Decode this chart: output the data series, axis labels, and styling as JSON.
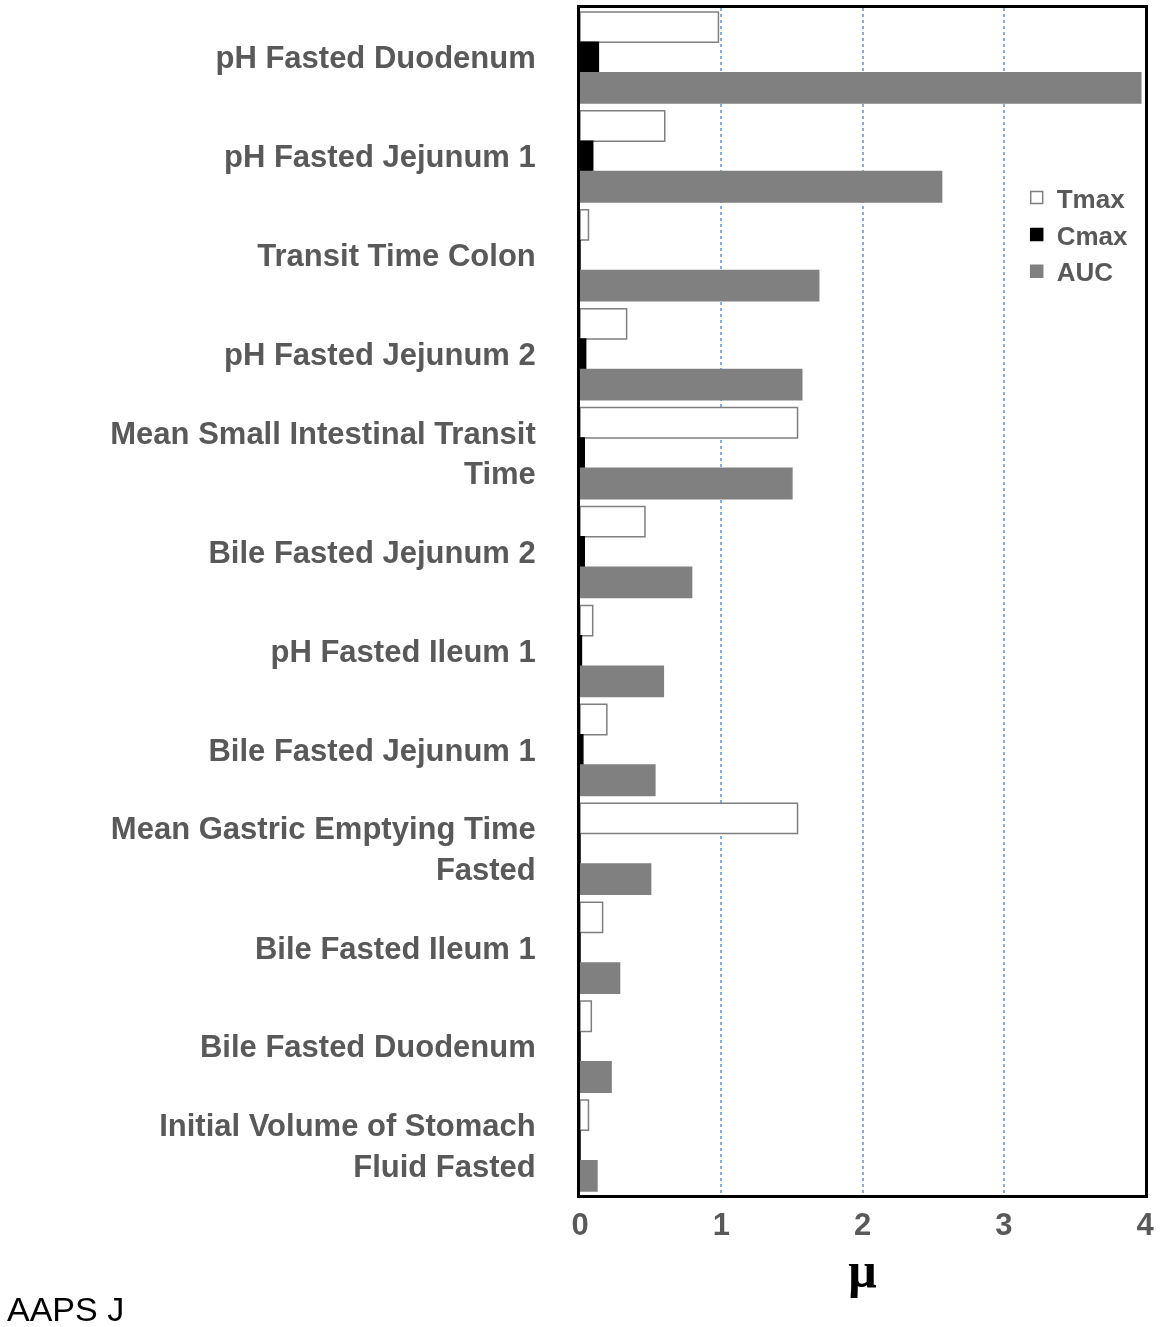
{
  "chart_data": {
    "type": "bar",
    "orientation": "horizontal",
    "xlabel": "μ",
    "categories": [
      "pH Fasted Duodenum",
      "pH Fasted Jejunum 1",
      "Transit Time Colon",
      "pH Fasted Jejunum 2",
      "Mean Small Intestinal Transit Time",
      "Bile Fasted Jejunum 2",
      "pH Fasted Ileum 1",
      "Bile Fasted Jejunum 1",
      "Mean Gastric Emptying Time Fasted",
      "Bile Fasted Ileum 1",
      "Bile Fasted Duodenum",
      "Initial Volume of Stomach Fluid Fasted"
    ],
    "series": [
      {
        "name": "Tmax",
        "color": "#ffffff",
        "values": [
          0.98,
          0.6,
          0.06,
          0.33,
          1.54,
          0.46,
          0.09,
          0.19,
          1.54,
          0.16,
          0.08,
          0.06
        ]
      },
      {
        "name": "Cmax",
        "color": "#000000",
        "values": [
          0.13,
          0.09,
          0,
          0.04,
          0.03,
          0.03,
          0.01,
          0.02,
          0,
          0,
          0,
          0
        ]
      },
      {
        "name": "AUC",
        "color": "#808080",
        "values": [
          3.97,
          2.56,
          1.69,
          1.57,
          1.5,
          0.79,
          0.59,
          0.53,
          0.5,
          0.28,
          0.22,
          0.12
        ]
      }
    ],
    "xlim": [
      0,
      4
    ],
    "xticks": [
      0,
      1,
      2,
      3,
      4
    ],
    "grid": "x",
    "legend": "top right",
    "annotations": [
      "AAPS J"
    ]
  }
}
